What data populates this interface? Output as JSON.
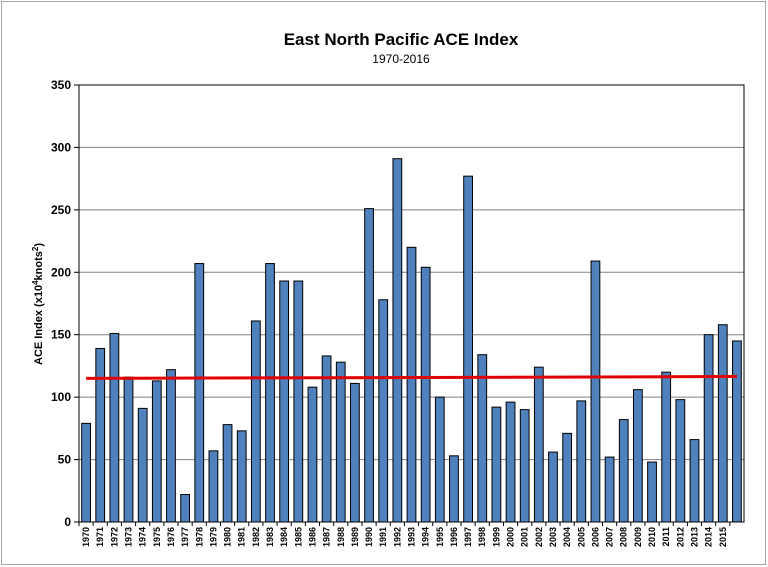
{
  "chart_data": {
    "type": "bar",
    "title": "East North Pacific ACE Index",
    "subtitle": "1970-2016",
    "ylabel_main": "ACE Index (x10",
    "ylabel_sup1": "4",
    "ylabel_mid": "knots",
    "ylabel_sup2": "2",
    "ylabel_end": ")",
    "ylim": [
      0,
      350
    ],
    "yticks": [
      0,
      50,
      100,
      150,
      200,
      250,
      300,
      350
    ],
    "grid": true,
    "bar_color": "#4f81bd",
    "bar_edge_color": "#000000",
    "trend_color": "#e00000",
    "trend_line": {
      "start": 115,
      "end": 116.5
    },
    "categories": [
      "1970",
      "1971",
      "1972",
      "1973",
      "1974",
      "1975",
      "1976",
      "1977",
      "1978",
      "1979",
      "1980",
      "1981",
      "1982",
      "1983",
      "1984",
      "1985",
      "1986",
      "1987",
      "1988",
      "1989",
      "1990",
      "1991",
      "1992",
      "1993",
      "1994",
      "1995",
      "1996",
      "1997",
      "1998",
      "1999",
      "2000",
      "2001",
      "2002",
      "2003",
      "2004",
      "2005",
      "2006",
      "2007",
      "2008",
      "2009",
      "2010",
      "2011",
      "2012",
      "2013",
      "2014",
      "2015",
      ""
    ],
    "values": [
      79,
      139,
      151,
      116,
      91,
      113,
      122,
      22,
      207,
      57,
      78,
      73,
      161,
      207,
      193,
      193,
      108,
      133,
      128,
      111,
      251,
      178,
      291,
      220,
      204,
      100,
      53,
      277,
      134,
      92,
      96,
      90,
      124,
      56,
      71,
      97,
      209,
      52,
      82,
      106,
      48,
      120,
      98,
      66,
      150,
      158,
      145
    ]
  }
}
